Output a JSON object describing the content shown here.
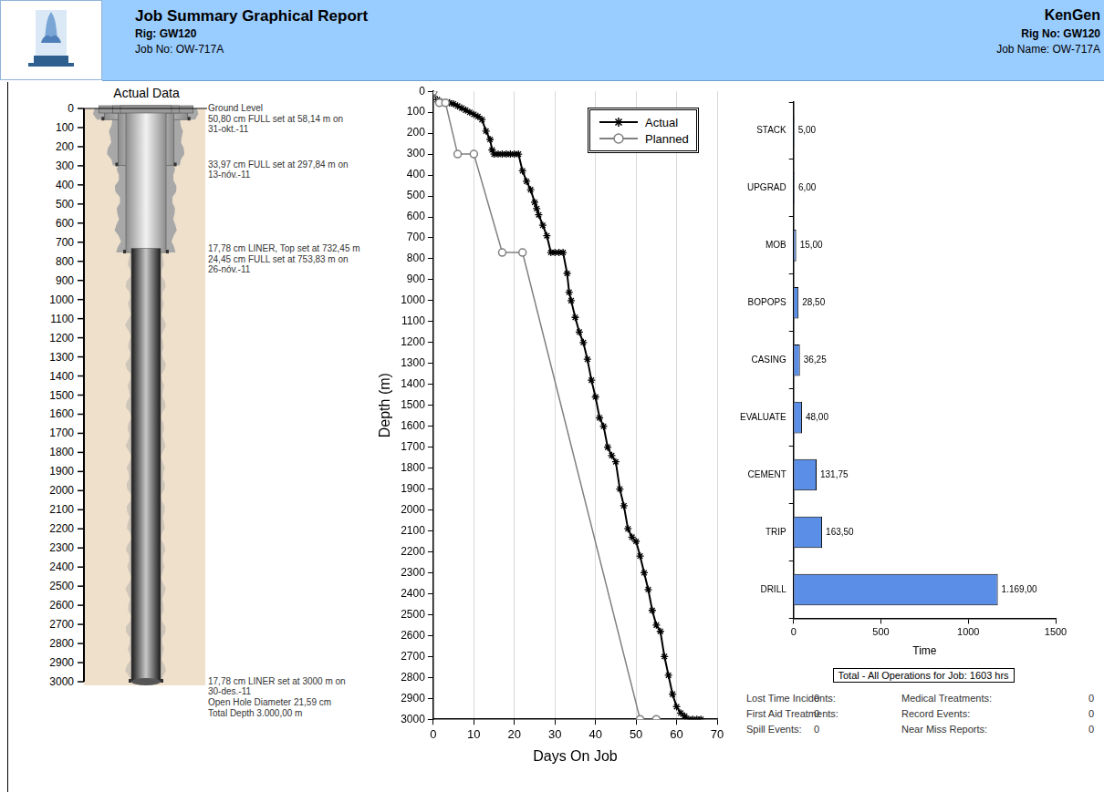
{
  "header": {
    "title": "Job Summary Graphical Report",
    "rig": "Rig: GW120",
    "job_no": "Job No: OW-717A",
    "company": "KenGen",
    "rig_no": "Rig No: GW120",
    "job_name": "Job Name: OW-717A"
  },
  "wellbore": {
    "title": "Actual Data",
    "ylim": [
      3000,
      0
    ],
    "yticks": [
      0,
      100,
      200,
      300,
      400,
      500,
      600,
      700,
      800,
      900,
      1000,
      1100,
      1200,
      1300,
      1400,
      1500,
      1600,
      1700,
      1800,
      1900,
      2000,
      2100,
      2200,
      2300,
      2400,
      2500,
      2600,
      2700,
      2800,
      2900,
      3000
    ],
    "casings": [
      {
        "diameter_cm": 50.8,
        "top": 0,
        "bottom": 58.14
      },
      {
        "diameter_cm": 33.97,
        "top": 0,
        "bottom": 297.84
      },
      {
        "diameter_cm": 24.45,
        "top": 0,
        "bottom": 753.83
      },
      {
        "diameter_cm": 17.78,
        "top": 732.45,
        "bottom": 3000
      }
    ],
    "annotations": [
      {
        "depth": 0,
        "text": "Ground Level"
      },
      {
        "depth": 58.14,
        "text": "50,80 cm FULL set at 58,14 m on 31-okt.-11"
      },
      {
        "depth": 297.84,
        "text": "33,97 cm FULL set at 297,84 m on 13-nóv.-11"
      },
      {
        "depth": 732.45,
        "text": "17,78 cm LINER, Top set at 732,45 m"
      },
      {
        "depth": 753.83,
        "text": "24,45 cm FULL set at 753,83 m on 26-nóv.-11"
      },
      {
        "depth": 3000,
        "text": "17,78 cm LINER set at 3000 m on 30-des.-11"
      },
      {
        "depth": 3000,
        "text": "Open Hole Diameter 21,59 cm"
      },
      {
        "depth": 3000,
        "text": "Total Depth 3.000,00 m"
      }
    ]
  },
  "chart_data": [
    {
      "type": "line",
      "x_label": "Days On Job",
      "y_label": "Depth (m)",
      "xlim": [
        0,
        70
      ],
      "xticks": [
        0,
        10,
        20,
        30,
        40,
        50,
        60,
        70
      ],
      "ylim": [
        3000,
        0
      ],
      "yticks": [
        0,
        100,
        200,
        300,
        400,
        500,
        600,
        700,
        800,
        900,
        1000,
        1100,
        1200,
        1300,
        1400,
        1500,
        1600,
        1700,
        1800,
        1900,
        2000,
        2100,
        2200,
        2300,
        2400,
        2500,
        2600,
        2700,
        2800,
        2900,
        3000
      ],
      "grid": "x",
      "legend": "top right",
      "series": [
        {
          "name": "Actual",
          "color": "#000000",
          "marker": "star",
          "x": [
            0,
            1,
            2,
            3,
            4,
            5,
            6,
            7,
            8,
            9,
            10,
            11,
            12,
            13,
            14,
            14.5,
            15,
            16,
            17,
            18,
            19,
            20,
            21,
            22,
            23,
            24,
            25,
            25.5,
            26,
            27,
            28,
            29,
            30,
            31,
            32,
            33,
            33.5,
            34,
            35,
            36,
            37,
            38,
            39,
            40,
            41,
            42,
            43,
            44,
            45,
            46,
            47,
            48,
            49,
            50,
            51,
            52,
            53,
            54,
            55,
            56,
            57,
            58,
            59,
            60,
            61,
            62,
            63,
            64,
            65,
            66
          ],
          "values": [
            0,
            40,
            50,
            52,
            55,
            60,
            70,
            80,
            90,
            100,
            110,
            120,
            135,
            190,
            230,
            280,
            300,
            300,
            300,
            300,
            300,
            300,
            300,
            380,
            430,
            470,
            530,
            560,
            590,
            640,
            690,
            770,
            770,
            770,
            770,
            870,
            960,
            1000,
            1080,
            1150,
            1200,
            1280,
            1380,
            1460,
            1560,
            1600,
            1700,
            1740,
            1770,
            1900,
            1980,
            2090,
            2130,
            2150,
            2220,
            2300,
            2380,
            2480,
            2550,
            2580,
            2700,
            2790,
            2880,
            2940,
            2970,
            2985,
            3000,
            3000,
            3000,
            3000
          ]
        },
        {
          "name": "Planned",
          "color": "#808080",
          "marker": "circle",
          "x": [
            0,
            1.5,
            3,
            6,
            10,
            17,
            22,
            51,
            55
          ],
          "values": [
            0,
            55,
            55,
            300,
            300,
            770,
            770,
            3000,
            3000
          ]
        }
      ]
    },
    {
      "type": "bar",
      "orientation": "horizontal",
      "x_label": "Time",
      "categories": [
        "STACK",
        "UPGRAD",
        "MOB",
        "BOPOPS",
        "CASING",
        "EVALUATE",
        "CEMENT",
        "TRIP",
        "DRILL"
      ],
      "values": [
        5,
        6,
        15,
        28.5,
        36.25,
        48,
        131.75,
        163.5,
        1169
      ],
      "value_labels": [
        "5,00",
        "6,00",
        "15,00",
        "28,50",
        "36,25",
        "48,00",
        "131,75",
        "163,50",
        "1.169,00"
      ],
      "color": "#5b8ee6",
      "xlim": [
        0,
        1500
      ],
      "xticks": [
        0,
        500,
        1000,
        1500
      ],
      "grid": false,
      "data_labels": true
    }
  ],
  "total": "Total - All Operations for Job: 1603 hrs",
  "safety": [
    [
      {
        "label": "Lost Time Incidents:",
        "value": 0
      },
      {
        "label": "Medical Treatments:",
        "value": 0
      }
    ],
    [
      {
        "label": "First Aid Treatments:",
        "value": 0
      },
      {
        "label": "Record Events:",
        "value": 0
      }
    ],
    [
      {
        "label": "Spill Events:",
        "value": 0
      },
      {
        "label": "Near Miss Reports:",
        "value": 0
      }
    ]
  ]
}
